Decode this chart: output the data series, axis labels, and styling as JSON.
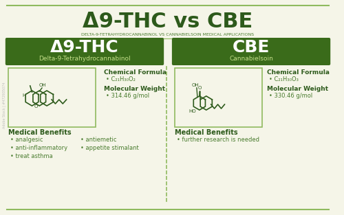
{
  "bg_color": "#f5f5e8",
  "dark_green": "#2d5a1b",
  "medium_green": "#4a7c2f",
  "light_green_border": "#8fba5e",
  "box_green": "#3a6b1a",
  "title": "Δ9-THC vs CBE",
  "subtitle": "DELTA-9-TETRAHYDROCANNABINOL VS CANNABIELSOIN MEDICAL APPLICATIONS",
  "thc_name": "Δ9-THC",
  "thc_full": "Delta-9-Tetrahydrocannabinol",
  "cbe_name": "CBE",
  "cbe_full": "Cannabielsoin",
  "thc_formula": "C₂₁H₃₀O₂",
  "thc_mw": "314.46 g/mol",
  "cbe_formula": "C₂₁H₃₀O₃",
  "cbe_mw": "330.46 g/mol",
  "thc_benefits_col1": [
    "analgesic",
    "anti-inflammatory",
    "treat asthma"
  ],
  "thc_benefits_col2": [
    "antiemetic",
    "appetite stimalant"
  ],
  "cbe_benefits": [
    "further research is needed"
  ],
  "watermark": "Adobe Stock | #472935074"
}
